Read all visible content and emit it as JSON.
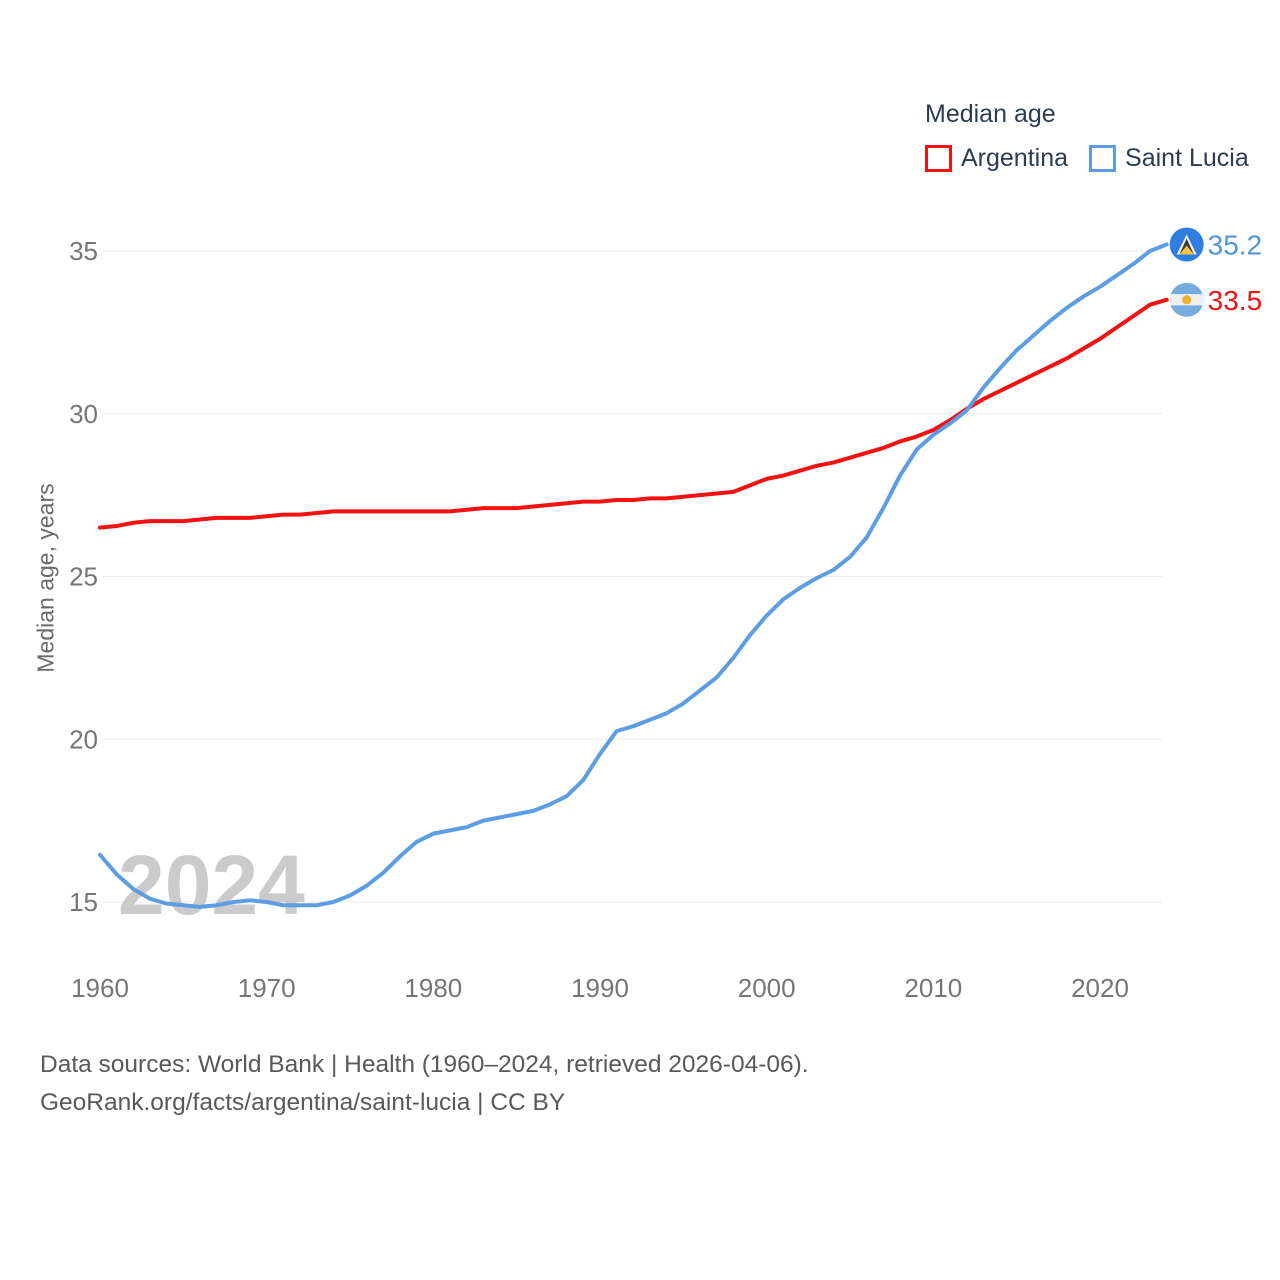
{
  "legend": {
    "title": "Median age",
    "items": [
      {
        "label": "Argentina",
        "color": "#f21212"
      },
      {
        "label": "Saint Lucia",
        "color": "#5d9de4"
      }
    ]
  },
  "footer": {
    "line1": "Data sources: World Bank | Health (1960–2024, retrieved 2026-04-06).",
    "line2": "GeoRank.org/facts/argentina/saint-lucia | CC BY"
  },
  "colors": {
    "argentina_line": "#f21212",
    "argentina_label": "#f21212",
    "saint_lucia_line": "#5d9de4",
    "saint_lucia_label": "#4e96e3",
    "gridline": "#ececec",
    "tick_text": "#767676",
    "legend_text": "#2c3d51",
    "watermark": "#cbcbcb",
    "saint_lucia_flag_blue": "#2e7ee2",
    "argentina_flag_blue": "#74acdf",
    "argentina_flag_sun": "#eeb22e"
  },
  "chart_data": {
    "type": "line",
    "title": "Median age",
    "xlabel": "",
    "ylabel": "Median age, years",
    "watermark": "2024",
    "grid": "horizontal",
    "legend_position": "top-right",
    "xlim": [
      1960,
      2024
    ],
    "ylim": [
      15,
      35
    ],
    "xticks": [
      1960,
      1970,
      1980,
      1990,
      2000,
      2010,
      2020
    ],
    "yticks": [
      15,
      20,
      25,
      30,
      35
    ],
    "x": [
      1960,
      1961,
      1962,
      1963,
      1964,
      1965,
      1966,
      1967,
      1968,
      1969,
      1970,
      1971,
      1972,
      1973,
      1974,
      1975,
      1976,
      1977,
      1978,
      1979,
      1980,
      1981,
      1982,
      1983,
      1984,
      1985,
      1986,
      1987,
      1988,
      1989,
      1990,
      1991,
      1992,
      1993,
      1994,
      1995,
      1996,
      1997,
      1998,
      1999,
      2000,
      2001,
      2002,
      2003,
      2004,
      2005,
      2006,
      2007,
      2008,
      2009,
      2010,
      2011,
      2012,
      2013,
      2014,
      2015,
      2016,
      2017,
      2018,
      2019,
      2020,
      2021,
      2022,
      2023,
      2024
    ],
    "series": [
      {
        "name": "Argentina",
        "color": "#f21212",
        "end_label": "33.5",
        "end_value": 33.5,
        "flag": "argentina-flag",
        "values": [
          26.5,
          26.55,
          26.65,
          26.7,
          26.7,
          26.7,
          26.75,
          26.8,
          26.8,
          26.8,
          26.85,
          26.9,
          26.9,
          26.95,
          27.0,
          27.0,
          27.0,
          27.0,
          27.0,
          27.0,
          27.0,
          27.0,
          27.05,
          27.1,
          27.1,
          27.1,
          27.15,
          27.2,
          27.25,
          27.3,
          27.3,
          27.35,
          27.35,
          27.4,
          27.4,
          27.45,
          27.5,
          27.55,
          27.6,
          27.8,
          28.0,
          28.1,
          28.25,
          28.4,
          28.5,
          28.65,
          28.8,
          28.95,
          29.15,
          29.3,
          29.5,
          29.8,
          30.15,
          30.45,
          30.7,
          30.95,
          31.2,
          31.45,
          31.7,
          32.0,
          32.3,
          32.65,
          33.0,
          33.35,
          33.5
        ]
      },
      {
        "name": "Saint Lucia",
        "color": "#5d9de4",
        "end_label": "35.2",
        "end_value": 35.2,
        "flag": "saint-lucia-flag",
        "values": [
          16.45,
          15.85,
          15.4,
          15.1,
          14.95,
          14.9,
          14.85,
          14.9,
          15.0,
          15.05,
          15.0,
          14.9,
          14.9,
          14.9,
          15.0,
          15.2,
          15.5,
          15.9,
          16.4,
          16.85,
          17.1,
          17.2,
          17.3,
          17.5,
          17.6,
          17.7,
          17.8,
          18.0,
          18.25,
          18.75,
          19.55,
          20.25,
          20.4,
          20.6,
          20.8,
          21.1,
          21.5,
          21.9,
          22.5,
          23.2,
          23.8,
          24.3,
          24.65,
          24.95,
          25.2,
          25.6,
          26.2,
          27.1,
          28.1,
          28.9,
          29.35,
          29.7,
          30.1,
          30.8,
          31.4,
          31.95,
          32.4,
          32.85,
          33.25,
          33.6,
          33.9,
          34.25,
          34.6,
          35.0,
          35.2
        ]
      }
    ]
  }
}
